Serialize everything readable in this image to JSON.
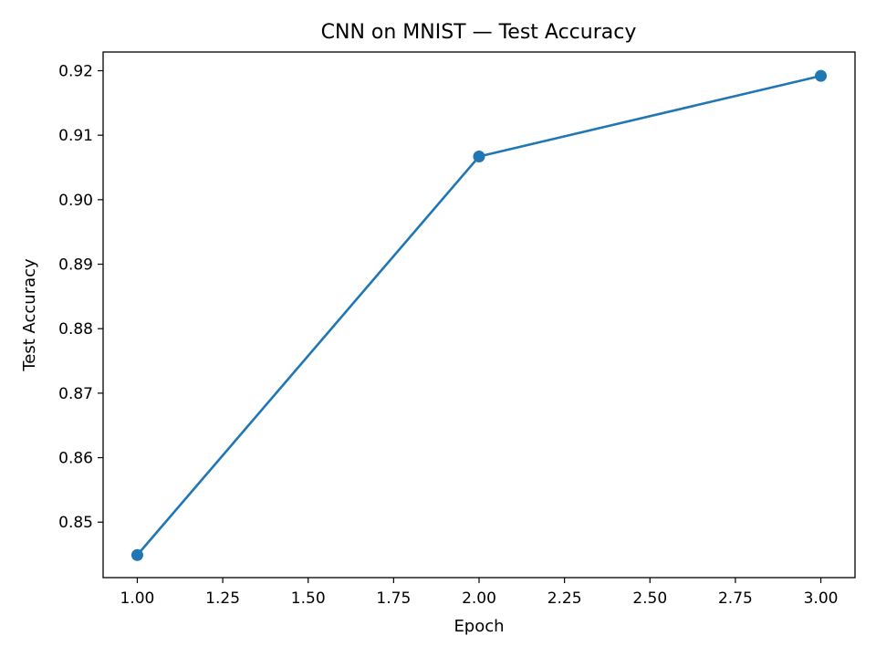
{
  "chart_data": {
    "type": "line",
    "title": "CNN on MNIST — Test Accuracy",
    "xlabel": "Epoch",
    "ylabel": "Test Accuracy",
    "xlim": [
      0.9,
      3.1
    ],
    "ylim": [
      0.8414,
      0.9229
    ],
    "xticks": [
      1.0,
      1.25,
      1.5,
      1.75,
      2.0,
      2.25,
      2.5,
      2.75,
      3.0
    ],
    "xtick_labels": [
      "1.00",
      "1.25",
      "1.50",
      "1.75",
      "2.00",
      "2.25",
      "2.50",
      "2.75",
      "3.00"
    ],
    "yticks": [
      0.85,
      0.86,
      0.87,
      0.88,
      0.89,
      0.9,
      0.91,
      0.92
    ],
    "ytick_labels": [
      "0.85",
      "0.86",
      "0.87",
      "0.88",
      "0.89",
      "0.90",
      "0.91",
      "0.92"
    ],
    "grid": false,
    "series": [
      {
        "x": [
          1.0,
          2.0,
          3.0
        ],
        "values": [
          0.8449,
          0.9067,
          0.9192
        ],
        "color": "#1f77b4",
        "marker": "circle"
      }
    ]
  }
}
